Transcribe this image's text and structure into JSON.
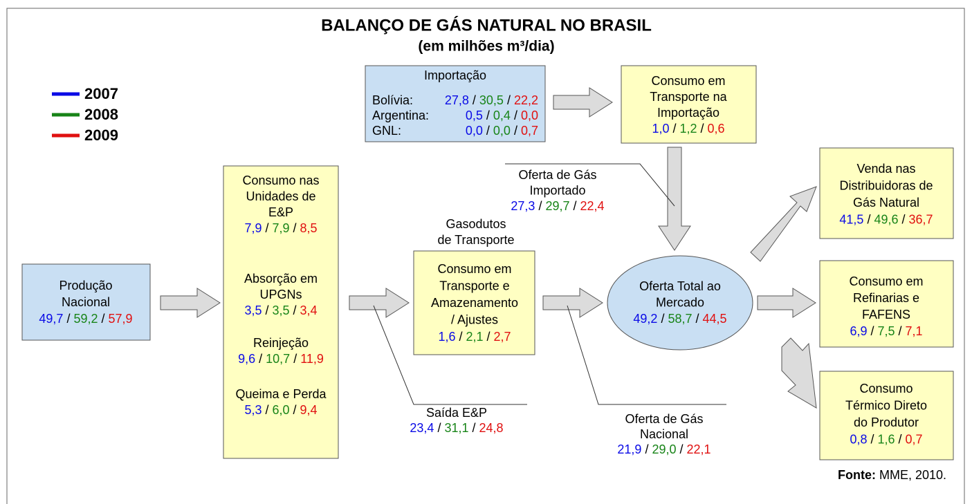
{
  "title": "BALANÇO DE GÁS NATURAL NO BRASIL",
  "subtitle": "(em milhões m³/dia)",
  "separator": "/",
  "legend": [
    {
      "year": "2007",
      "color": "#0a0ae6"
    },
    {
      "year": "2008",
      "color": "#188418"
    },
    {
      "year": "2009",
      "color": "#e01010"
    }
  ],
  "nodes": {
    "importacao": {
      "label": "Importação",
      "rows": [
        {
          "label": "Bolívia:",
          "values": [
            "27,8",
            "30,5",
            "22,2"
          ]
        },
        {
          "label": "Argentina:",
          "values": [
            "0,5",
            "0,4",
            "0,0"
          ]
        },
        {
          "label": "GNL:",
          "values": [
            "0,0",
            "0,0",
            "0,7"
          ]
        }
      ]
    },
    "consumo_importacao": {
      "lines": [
        "Consumo em",
        "Transporte na",
        "Importação"
      ],
      "values": [
        "1,0",
        "1,2",
        "0,6"
      ]
    },
    "producao": {
      "lines": [
        "Produção",
        "Nacional"
      ],
      "values": [
        "49,7",
        "59,2",
        "57,9"
      ]
    },
    "unidades_ep": {
      "sections": [
        {
          "lines": [
            "Consumo nas",
            "Unidades de",
            "E&P"
          ],
          "values": [
            "7,9",
            "7,9",
            "8,5"
          ]
        },
        {
          "lines": [
            "Absorção em",
            "UPGNs"
          ],
          "values": [
            "3,5",
            "3,5",
            "3,4"
          ]
        },
        {
          "lines": [
            "Reinjeção"
          ],
          "values": [
            "9,6",
            "10,7",
            "11,9"
          ]
        },
        {
          "lines": [
            "Queima e Perda"
          ],
          "values": [
            "5,3",
            "6,0",
            "9,4"
          ]
        }
      ]
    },
    "gasodutos": {
      "lines": [
        "Gasodutos",
        "de Transporte"
      ]
    },
    "transporte": {
      "lines": [
        "Consumo em",
        "Transporte e",
        "Amazenamento",
        "/ Ajustes"
      ],
      "values": [
        "1,6",
        "2,1",
        "2,7"
      ]
    },
    "oferta_importado": {
      "lines": [
        "Oferta de Gás",
        "Importado"
      ],
      "values": [
        "27,3",
        "29,7",
        "22,4"
      ]
    },
    "saida_ep": {
      "lines": [
        "Saída E&P"
      ],
      "values": [
        "23,4",
        "31,1",
        "24,8"
      ]
    },
    "oferta_total": {
      "lines": [
        "Oferta Total ao",
        "Mercado"
      ],
      "values": [
        "49,2",
        "58,7",
        "44,5"
      ]
    },
    "oferta_nacional": {
      "lines": [
        "Oferta de Gás",
        "Nacional"
      ],
      "values": [
        "21,9",
        "29,0",
        "22,1"
      ]
    },
    "venda": {
      "lines": [
        "Venda nas",
        "Distribuidoras de",
        "Gás Natural"
      ],
      "values": [
        "41,5",
        "49,6",
        "36,7"
      ]
    },
    "refinarias": {
      "lines": [
        "Consumo em",
        "Refinarias e",
        "FAFENS"
      ],
      "values": [
        "6,9",
        "7,5",
        "7,1"
      ]
    },
    "termico": {
      "lines": [
        "Consumo",
        "Térmico Direto",
        "do Produtor"
      ],
      "values": [
        "0,8",
        "1,6",
        "0,7"
      ]
    }
  },
  "source": {
    "label": "Fonte:",
    "text": "MME, 2010."
  }
}
